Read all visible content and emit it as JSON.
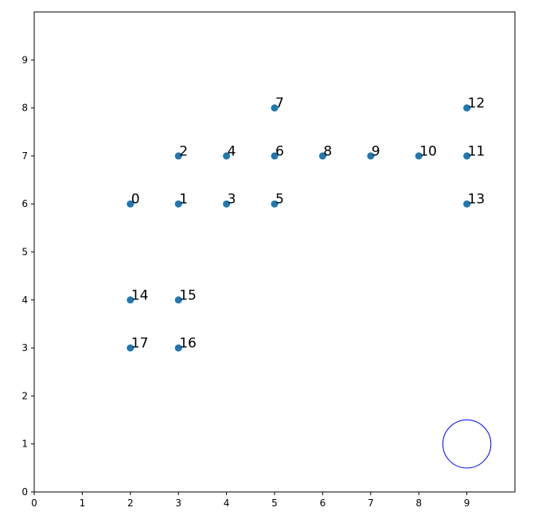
{
  "chart_data": {
    "type": "scatter",
    "xlim": [
      0,
      10
    ],
    "ylim": [
      0,
      10
    ],
    "x_ticks": [
      0,
      1,
      2,
      3,
      4,
      5,
      6,
      7,
      8,
      9
    ],
    "y_ticks": [
      0,
      1,
      2,
      3,
      4,
      5,
      6,
      7,
      8,
      9
    ],
    "grid": false,
    "point_color": "#1f77b4",
    "points": [
      {
        "label": "0",
        "x": 2,
        "y": 6
      },
      {
        "label": "1",
        "x": 3,
        "y": 6
      },
      {
        "label": "2",
        "x": 3,
        "y": 7
      },
      {
        "label": "3",
        "x": 4,
        "y": 6
      },
      {
        "label": "4",
        "x": 4,
        "y": 7
      },
      {
        "label": "5",
        "x": 5,
        "y": 6
      },
      {
        "label": "6",
        "x": 5,
        "y": 7
      },
      {
        "label": "7",
        "x": 5,
        "y": 8
      },
      {
        "label": "8",
        "x": 6,
        "y": 7
      },
      {
        "label": "9",
        "x": 7,
        "y": 7
      },
      {
        "label": "10",
        "x": 8,
        "y": 7
      },
      {
        "label": "11",
        "x": 9,
        "y": 7
      },
      {
        "label": "12",
        "x": 9,
        "y": 8
      },
      {
        "label": "13",
        "x": 9,
        "y": 6
      },
      {
        "label": "14",
        "x": 2,
        "y": 4
      },
      {
        "label": "15",
        "x": 3,
        "y": 4
      },
      {
        "label": "16",
        "x": 3,
        "y": 3
      },
      {
        "label": "17",
        "x": 2,
        "y": 3
      }
    ],
    "circle": {
      "cx": 9,
      "cy": 1,
      "r": 0.5,
      "color": "#0000ff"
    }
  }
}
